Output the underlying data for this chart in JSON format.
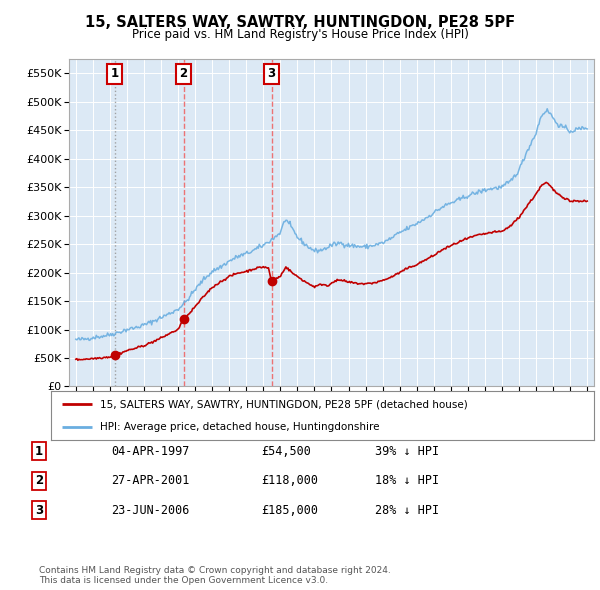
{
  "title": "15, SALTERS WAY, SAWTRY, HUNTINGDON, PE28 5PF",
  "subtitle": "Price paid vs. HM Land Registry's House Price Index (HPI)",
  "bg_color": "#dce9f5",
  "yticks": [
    0,
    50000,
    100000,
    150000,
    200000,
    250000,
    300000,
    350000,
    400000,
    450000,
    500000,
    550000
  ],
  "ytick_labels": [
    "£0",
    "£50K",
    "£100K",
    "£150K",
    "£200K",
    "£250K",
    "£300K",
    "£350K",
    "£400K",
    "£450K",
    "£500K",
    "£550K"
  ],
  "xlim_start": 1994.6,
  "xlim_end": 2025.4,
  "ylim_min": 0,
  "ylim_max": 575000,
  "sale_dates": [
    1997.27,
    2001.32,
    2006.48
  ],
  "sale_prices": [
    54500,
    118000,
    185000
  ],
  "sale_labels": [
    "1",
    "2",
    "3"
  ],
  "legend_entries": [
    "15, SALTERS WAY, SAWTRY, HUNTINGDON, PE28 5PF (detached house)",
    "HPI: Average price, detached house, Huntingdonshire"
  ],
  "table_rows": [
    [
      "1",
      "04-APR-1997",
      "£54,500",
      "39% ↓ HPI"
    ],
    [
      "2",
      "27-APR-2001",
      "£118,000",
      "18% ↓ HPI"
    ],
    [
      "3",
      "23-JUN-2006",
      "£185,000",
      "28% ↓ HPI"
    ]
  ],
  "footer": "Contains HM Land Registry data © Crown copyright and database right 2024.\nThis data is licensed under the Open Government Licence v3.0.",
  "hpi_color": "#6aaee0",
  "sale_color": "#c00000",
  "dashed_color_1": "#999999",
  "dashed_color_23": "#ee6666"
}
